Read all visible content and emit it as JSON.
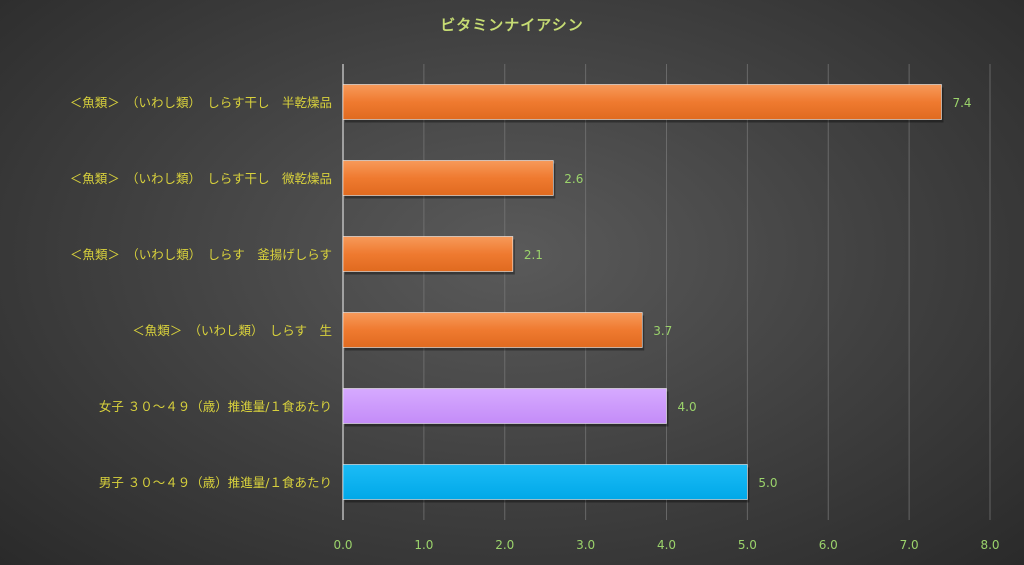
{
  "chart_data": {
    "type": "bar",
    "orientation": "horizontal",
    "title": "ビタミンナイアシン",
    "xlabel": "",
    "ylabel": "",
    "xlim": [
      0,
      8
    ],
    "x_ticks": [
      "0.0",
      "1.0",
      "2.0",
      "3.0",
      "4.0",
      "5.0",
      "6.0",
      "7.0",
      "8.0"
    ],
    "grid": true,
    "legend": "none",
    "categories": [
      "＜魚類＞　（いわし類）　しらす干し　半乾燥品",
      "＜魚類＞　（いわし類）　しらす干し　微乾燥品",
      "＜魚類＞　（いわし類）　しらす　釜揚げしらす",
      "＜魚類＞　（いわし類）　しらす　生",
      "女子 ３０～４９（歳）推進量/１食あたり",
      "男子 ３０～４９（歳）推進量/１食あたり"
    ],
    "values": [
      7.4,
      2.6,
      2.1,
      3.7,
      4.0,
      5.0
    ],
    "value_labels": [
      "7.4",
      "2.6",
      "2.1",
      "3.7",
      "4.0",
      "5.0"
    ],
    "bar_colors": [
      "#ee7a2e",
      "#ee7a2e",
      "#ee7a2e",
      "#ee7a2e",
      "#cc99ff",
      "#00b0f0"
    ]
  }
}
